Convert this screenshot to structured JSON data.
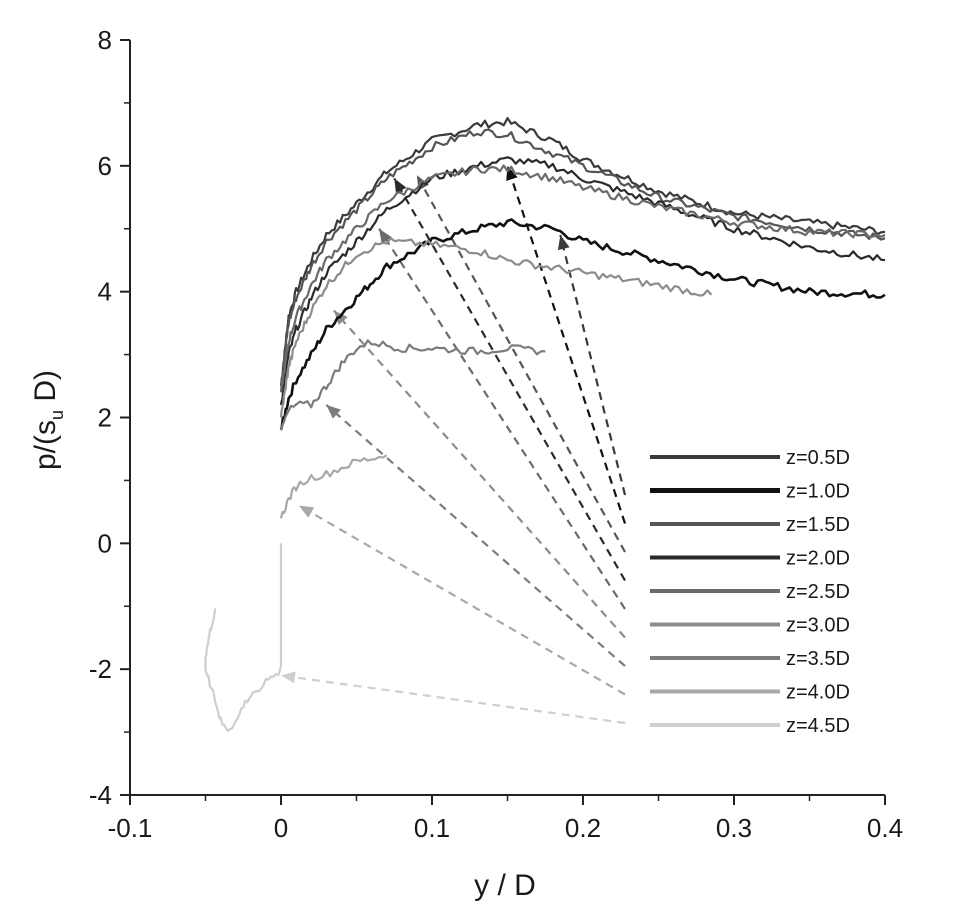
{
  "chart_data": {
    "type": "line",
    "xlabel": "y / D",
    "ylabel": "p/(s",
    "ylabel_sub": "u",
    "ylabel_end": " D)",
    "xlim": [
      -0.1,
      0.4
    ],
    "ylim": [
      -4,
      8
    ],
    "xticks": [
      {
        "value": -0.1,
        "label": "-0.1"
      },
      {
        "value": 0,
        "label": "0"
      },
      {
        "value": 0.1,
        "label": "0.1"
      },
      {
        "value": 0.2,
        "label": "0.2"
      },
      {
        "value": 0.3,
        "label": "0.3"
      },
      {
        "value": 0.4,
        "label": "0.4"
      }
    ],
    "yticks": [
      {
        "value": -4,
        "label": "-4"
      },
      {
        "value": -2,
        "label": "-2"
      },
      {
        "value": 0,
        "label": "0"
      },
      {
        "value": 2,
        "label": "2"
      },
      {
        "value": 4,
        "label": "4"
      },
      {
        "value": 6,
        "label": "6"
      },
      {
        "value": 8,
        "label": "8"
      }
    ],
    "grid": false,
    "legend_position": "right",
    "series": [
      {
        "name": "z=0.5D",
        "color": "#3a3a3a",
        "x": [
          0,
          0.005,
          0.01,
          0.02,
          0.03,
          0.05,
          0.07,
          0.1,
          0.13,
          0.15,
          0.18,
          0.2,
          0.25,
          0.3,
          0.35,
          0.4
        ],
        "y": [
          2.5,
          3.6,
          4.0,
          4.5,
          4.9,
          5.4,
          5.9,
          6.4,
          6.65,
          6.7,
          6.4,
          6.1,
          5.6,
          5.25,
          5.1,
          4.95
        ]
      },
      {
        "name": "z=1.0D",
        "color": "#111111",
        "x": [
          0,
          0.005,
          0.01,
          0.02,
          0.03,
          0.05,
          0.07,
          0.1,
          0.13,
          0.15,
          0.18,
          0.2,
          0.25,
          0.3,
          0.35,
          0.4
        ],
        "y": [
          1.8,
          2.3,
          2.6,
          3.0,
          3.4,
          3.9,
          4.4,
          4.8,
          5.0,
          5.1,
          5.0,
          4.8,
          4.5,
          4.2,
          4.0,
          3.95
        ]
      },
      {
        "name": "z=1.5D",
        "color": "#555555",
        "x": [
          0,
          0.005,
          0.01,
          0.02,
          0.03,
          0.05,
          0.07,
          0.1,
          0.13,
          0.15,
          0.18,
          0.2,
          0.25,
          0.3,
          0.35,
          0.4
        ],
        "y": [
          2.5,
          3.5,
          3.9,
          4.4,
          4.8,
          5.3,
          5.8,
          6.3,
          6.55,
          6.5,
          6.2,
          6.0,
          5.5,
          5.2,
          5.0,
          4.85
        ]
      },
      {
        "name": "z=2.0D",
        "color": "#2a2a2a",
        "x": [
          0,
          0.005,
          0.01,
          0.02,
          0.03,
          0.05,
          0.07,
          0.1,
          0.13,
          0.15,
          0.18,
          0.2,
          0.25,
          0.3,
          0.35,
          0.4
        ],
        "y": [
          2.2,
          3.0,
          3.4,
          3.9,
          4.3,
          4.8,
          5.3,
          5.8,
          6.0,
          6.1,
          6.0,
          5.8,
          5.4,
          5.0,
          4.7,
          4.5
        ]
      },
      {
        "name": "z=2.5D",
        "color": "#6a6a6a",
        "x": [
          0,
          0.005,
          0.01,
          0.02,
          0.03,
          0.05,
          0.07,
          0.1,
          0.13,
          0.15,
          0.18,
          0.2,
          0.25,
          0.3,
          0.35,
          0.4
        ],
        "y": [
          2.4,
          3.2,
          3.6,
          4.1,
          4.5,
          5.0,
          5.45,
          5.8,
          5.95,
          5.95,
          5.8,
          5.65,
          5.35,
          5.1,
          4.95,
          4.9
        ]
      },
      {
        "name": "z=3.0D",
        "color": "#8c8c8c",
        "x": [
          0,
          0.005,
          0.01,
          0.02,
          0.03,
          0.05,
          0.07,
          0.1,
          0.13,
          0.15,
          0.2,
          0.25,
          0.285
        ],
        "y": [
          2.0,
          2.8,
          3.2,
          3.7,
          4.1,
          4.6,
          4.8,
          4.75,
          4.65,
          4.5,
          4.3,
          4.1,
          3.95
        ]
      },
      {
        "name": "z=3.5D",
        "color": "#7c7c7c",
        "x": [
          0,
          0.005,
          0.01,
          0.02,
          0.03,
          0.04,
          0.05,
          0.06,
          0.08,
          0.1,
          0.13,
          0.15,
          0.175
        ],
        "y": [
          1.8,
          2.1,
          2.2,
          2.2,
          2.5,
          2.85,
          3.1,
          3.2,
          3.1,
          3.1,
          3.05,
          3.1,
          3.05
        ]
      },
      {
        "name": "z=4.0D",
        "color": "#a8a8a8",
        "x": [
          0,
          0.005,
          0.01,
          0.02,
          0.03,
          0.04,
          0.05,
          0.06,
          0.07
        ],
        "y": [
          0.4,
          0.7,
          0.9,
          1.05,
          1.1,
          1.2,
          1.3,
          1.35,
          1.4
        ]
      },
      {
        "name": "z=4.5D",
        "color": "#cfcfcf",
        "x": [
          0,
          0.0,
          -0.005,
          -0.01,
          -0.015,
          -0.02,
          -0.025,
          -0.03,
          -0.035,
          -0.04,
          -0.045,
          -0.05,
          -0.05,
          -0.047,
          -0.045,
          -0.043
        ],
        "y": [
          0.0,
          -2.0,
          -2.1,
          -2.2,
          -2.3,
          -2.4,
          -2.6,
          -2.8,
          -3.0,
          -2.8,
          -2.4,
          -2.0,
          -1.8,
          -1.4,
          -1.2,
          -1.05
        ]
      }
    ]
  }
}
